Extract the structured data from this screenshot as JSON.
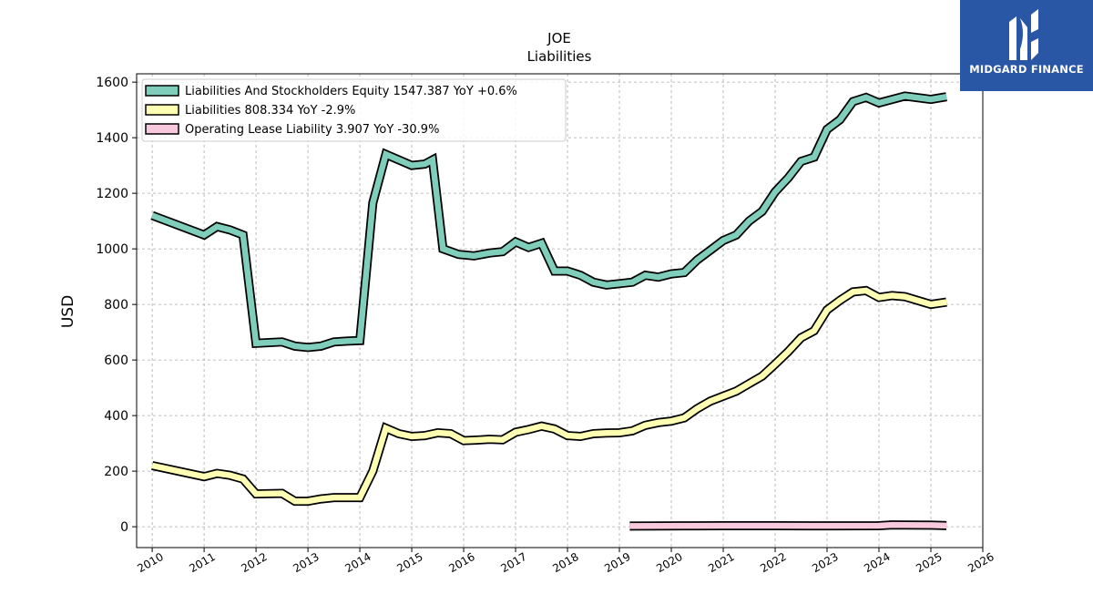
{
  "chart_data": {
    "type": "line",
    "title": "JOE",
    "subtitle": "Liabilities",
    "xlabel": "",
    "ylabel": "USD",
    "xlim": [
      2009.7,
      2026.0
    ],
    "ylim": [
      -75,
      1630
    ],
    "x_ticks": [
      "2010",
      "2011",
      "2012",
      "2013",
      "2014",
      "2015",
      "2016",
      "2017",
      "2018",
      "2019",
      "2020",
      "2021",
      "2022",
      "2023",
      "2024",
      "2025",
      "2026"
    ],
    "y_ticks": [
      0,
      200,
      400,
      600,
      800,
      1000,
      1200,
      1400,
      1600
    ],
    "grid": true,
    "legend_position": "top-left",
    "series": [
      {
        "name": "Liabilities And Stockholders Equity",
        "legend": "Liabilities And Stockholders Equity  1547.387 YoY +0.6%",
        "color": "#7fcdbb",
        "x": [
          2010.0,
          2011.0,
          2011.25,
          2011.5,
          2011.75,
          2012.0,
          2012.5,
          2012.75,
          2013.0,
          2013.25,
          2013.5,
          2013.75,
          2014.0,
          2014.25,
          2014.5,
          2014.75,
          2015.0,
          2015.25,
          2015.4,
          2015.6,
          2015.9,
          2016.2,
          2016.5,
          2016.75,
          2017.0,
          2017.25,
          2017.5,
          2017.75,
          2018.0,
          2018.25,
          2018.5,
          2018.75,
          2019.0,
          2019.25,
          2019.5,
          2019.75,
          2020.0,
          2020.25,
          2020.5,
          2020.75,
          2021.0,
          2021.25,
          2021.5,
          2021.75,
          2022.0,
          2022.25,
          2022.5,
          2022.75,
          2023.0,
          2023.25,
          2023.5,
          2023.75,
          2024.0,
          2024.5,
          2025.0,
          2025.3
        ],
        "values": [
          1120,
          1050,
          1080,
          1068,
          1050,
          660,
          665,
          650,
          645,
          650,
          665,
          668,
          670,
          1165,
          1340,
          1320,
          1300,
          1305,
          1320,
          1000,
          980,
          975,
          985,
          990,
          1025,
          1005,
          1020,
          920,
          920,
          905,
          880,
          870,
          875,
          880,
          905,
          898,
          910,
          915,
          960,
          995,
          1030,
          1050,
          1100,
          1135,
          1205,
          1255,
          1315,
          1330,
          1430,
          1465,
          1530,
          1545,
          1525,
          1550,
          1538,
          1547.387
        ]
      },
      {
        "name": "Liabilities",
        "legend": "Liabilities  808.334 YoY -2.9%",
        "color": "#ffffb3",
        "x": [
          2010.0,
          2011.0,
          2011.25,
          2011.5,
          2011.75,
          2012.0,
          2012.5,
          2012.75,
          2013.0,
          2013.25,
          2013.5,
          2013.75,
          2014.0,
          2014.25,
          2014.5,
          2014.75,
          2015.0,
          2015.25,
          2015.5,
          2015.75,
          2016.0,
          2016.25,
          2016.5,
          2016.75,
          2017.0,
          2017.25,
          2017.5,
          2017.75,
          2018.0,
          2018.25,
          2018.5,
          2018.75,
          2019.0,
          2019.25,
          2019.5,
          2019.75,
          2020.0,
          2020.25,
          2020.5,
          2020.75,
          2021.0,
          2021.25,
          2021.5,
          2021.75,
          2022.0,
          2022.25,
          2022.5,
          2022.75,
          2023.0,
          2023.25,
          2023.5,
          2023.75,
          2024.0,
          2024.25,
          2024.5,
          2025.0,
          2025.3
        ],
        "values": [
          220,
          180,
          192,
          185,
          172,
          118,
          120,
          92,
          92,
          100,
          105,
          105,
          105,
          200,
          355,
          335,
          325,
          328,
          338,
          335,
          310,
          312,
          315,
          313,
          340,
          350,
          362,
          352,
          328,
          325,
          335,
          337,
          338,
          345,
          365,
          375,
          380,
          392,
          425,
          452,
          470,
          488,
          515,
          542,
          585,
          630,
          680,
          705,
          780,
          815,
          845,
          850,
          825,
          832,
          828,
          800,
          808.334
        ]
      },
      {
        "name": "Operating Lease Liability",
        "legend": "Operating Lease Liability  3.907 YoY -30.9%",
        "color": "#f8c8dc",
        "x": [
          2019.2,
          2019.75,
          2020.25,
          2021.0,
          2022.0,
          2023.0,
          2024.0,
          2024.25,
          2024.5,
          2025.0,
          2025.3
        ],
        "values": [
          2.5,
          3.2,
          3.5,
          3.6,
          3.6,
          3.5,
          3.7,
          6.5,
          6.0,
          5.6,
          3.907
        ]
      }
    ]
  },
  "brand": {
    "name": "MIDGARD FINANCE",
    "icon": "midgard-logo-icon",
    "color": "#2a56a6"
  }
}
